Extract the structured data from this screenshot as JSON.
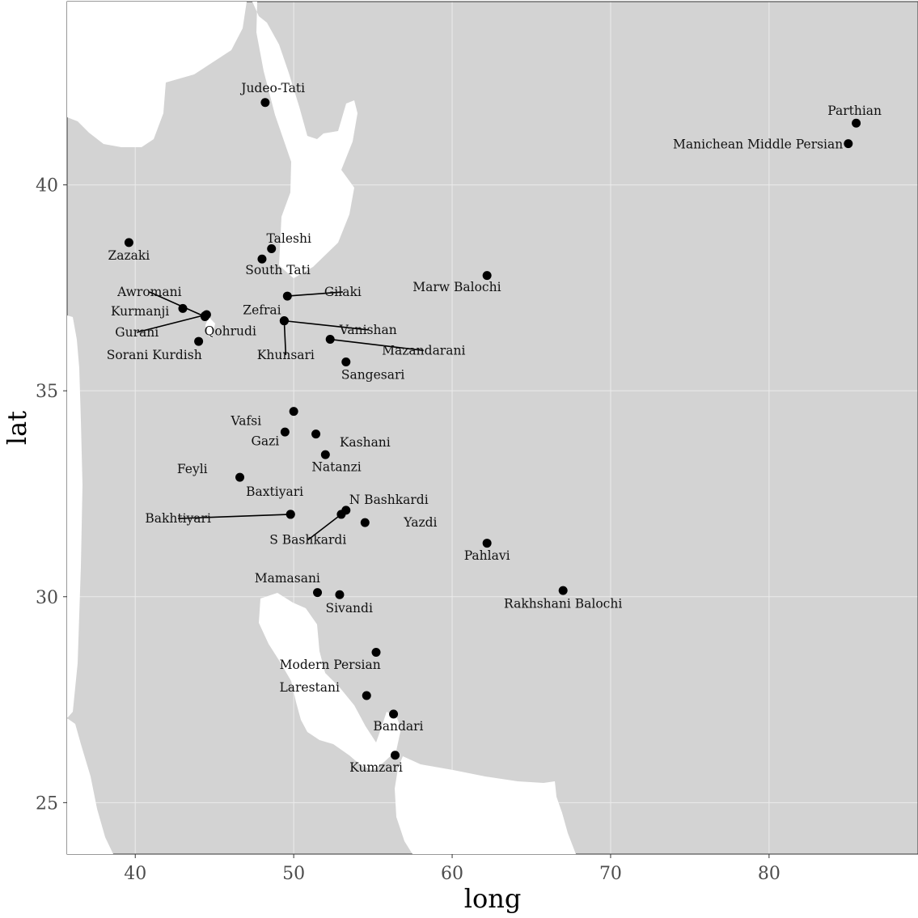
{
  "colors": {
    "land": "#d3d3d3",
    "water": "#ffffff",
    "point": "#000000",
    "leader": "#000000",
    "grid": "#ebebeb",
    "frame": "#333333"
  },
  "map": {
    "type": "point-map",
    "xlabel": "long",
    "ylabel": "lat",
    "xlim": [
      35.7,
      89.4
    ],
    "ylim": [
      23.75,
      44.45
    ],
    "x_ticks": [
      40,
      50,
      60,
      70,
      80
    ],
    "y_ticks": [
      25,
      30,
      35,
      40
    ],
    "grid": true,
    "legend": "none",
    "locations": [
      {
        "name": "Judeo-Tati",
        "lon": 48.2,
        "lat": 42.0,
        "label_lon": 48.7,
        "label_lat": 42.35
      },
      {
        "name": "Parthian",
        "lon": 85.5,
        "lat": 41.5,
        "label_lon": 85.4,
        "label_lat": 41.8
      },
      {
        "name": "Manichean Middle Persian",
        "lon": 85.0,
        "lat": 41.0,
        "label_lon": 79.3,
        "label_lat": 40.98
      },
      {
        "name": "Zazaki",
        "lon": 39.6,
        "lat": 38.6,
        "label_lon": 39.6,
        "label_lat": 38.28
      },
      {
        "name": "Taleshi",
        "lon": 48.6,
        "lat": 38.45,
        "label_lon": 49.7,
        "label_lat": 38.7
      },
      {
        "name": "South Tati",
        "lon": 48.0,
        "lat": 38.2,
        "label_lon": 49.0,
        "label_lat": 37.93
      },
      {
        "name": "Marw Balochi",
        "lon": 62.2,
        "lat": 37.8,
        "label_lon": 60.3,
        "label_lat": 37.52
      },
      {
        "name": "Awromani",
        "lon": 44.4,
        "lat": 36.8,
        "label_lon": 40.9,
        "label_lat": 37.4,
        "leader": true
      },
      {
        "name": "Kurmanji",
        "lon": 43.0,
        "lat": 37.0,
        "label_lon": 40.3,
        "label_lat": 36.93
      },
      {
        "name": "Gurani",
        "lon": 44.5,
        "lat": 36.85,
        "label_lon": 40.1,
        "label_lat": 36.42,
        "leader": true
      },
      {
        "name": "Qohrudi",
        "lon": 44.4,
        "lat": 36.82,
        "label_lon": 46.0,
        "label_lat": 36.45
      },
      {
        "name": "Sorani Kurdish",
        "lon": 44.0,
        "lat": 36.2,
        "label_lon": 41.2,
        "label_lat": 35.87
      },
      {
        "name": "Gilaki",
        "lon": 49.6,
        "lat": 37.3,
        "label_lon": 53.1,
        "label_lat": 37.4,
        "leader": true
      },
      {
        "name": "Zefrai",
        "lon": 49.4,
        "lat": 36.7,
        "label_lon": 48.0,
        "label_lat": 36.96
      },
      {
        "name": "Vanishan",
        "lon": 49.4,
        "lat": 36.7,
        "label_lon": 54.7,
        "label_lat": 36.48,
        "leader": true
      },
      {
        "name": "Khunsari",
        "lon": 49.4,
        "lat": 36.7,
        "label_lon": 49.5,
        "label_lat": 35.87,
        "leader": true
      },
      {
        "name": "Mazandarani",
        "lon": 52.3,
        "lat": 36.25,
        "label_lon": 58.2,
        "label_lat": 35.98,
        "leader": true
      },
      {
        "name": "Sangesari",
        "lon": 53.3,
        "lat": 35.7,
        "label_lon": 55.0,
        "label_lat": 35.39
      },
      {
        "name": "Vafsi",
        "lon": 50.0,
        "lat": 34.5,
        "label_lon": 47.0,
        "label_lat": 34.27
      },
      {
        "name": "Gazi",
        "lon": 49.45,
        "lat": 34.0,
        "label_lon": 48.2,
        "label_lat": 33.78
      },
      {
        "name": "Kashani",
        "lon": 51.4,
        "lat": 33.95,
        "label_lon": 54.5,
        "label_lat": 33.75
      },
      {
        "name": "Natanzi",
        "lon": 52.0,
        "lat": 33.45,
        "label_lon": 52.7,
        "label_lat": 33.15
      },
      {
        "name": "Feyli",
        "lon": 46.6,
        "lat": 32.9,
        "label_lon": 43.6,
        "label_lat": 33.1
      },
      {
        "name": "Baxtiyari",
        "lon": 49.8,
        "lat": 32.0,
        "label_lon": 48.8,
        "label_lat": 32.55
      },
      {
        "name": "Bakhtiyari",
        "lon": 49.8,
        "lat": 32.0,
        "label_lon": 42.7,
        "label_lat": 31.9,
        "leader": true
      },
      {
        "name": "N Bashkardi",
        "lon": 53.3,
        "lat": 32.1,
        "label_lon": 56.0,
        "label_lat": 32.35
      },
      {
        "name": "S Bashkardi",
        "lon": 53.0,
        "lat": 32.0,
        "label_lon": 50.9,
        "label_lat": 31.38,
        "leader": true
      },
      {
        "name": "Yazdi",
        "lon": 54.5,
        "lat": 31.8,
        "label_lon": 58.0,
        "label_lat": 31.8
      },
      {
        "name": "Pahlavi",
        "lon": 62.2,
        "lat": 31.3,
        "label_lon": 62.2,
        "label_lat": 31.0
      },
      {
        "name": "Mamasani",
        "lon": 51.5,
        "lat": 30.1,
        "label_lon": 49.6,
        "label_lat": 30.45
      },
      {
        "name": "Sivandi",
        "lon": 52.9,
        "lat": 30.05,
        "label_lon": 53.5,
        "label_lat": 29.72
      },
      {
        "name": "Rakhshani Balochi",
        "lon": 67.0,
        "lat": 30.15,
        "label_lon": 67.0,
        "label_lat": 29.83
      },
      {
        "name": "Modern Persian",
        "lon": 55.2,
        "lat": 28.65,
        "label_lon": 52.3,
        "label_lat": 28.35
      },
      {
        "name": "Larestani",
        "lon": 54.6,
        "lat": 27.6,
        "label_lon": 51.0,
        "label_lat": 27.8
      },
      {
        "name": "Bandari",
        "lon": 56.3,
        "lat": 27.15,
        "label_lon": 56.6,
        "label_lat": 26.85
      },
      {
        "name": "Kumzari",
        "lon": 56.4,
        "lat": 26.15,
        "label_lon": 55.2,
        "label_lat": 25.85
      }
    ]
  }
}
